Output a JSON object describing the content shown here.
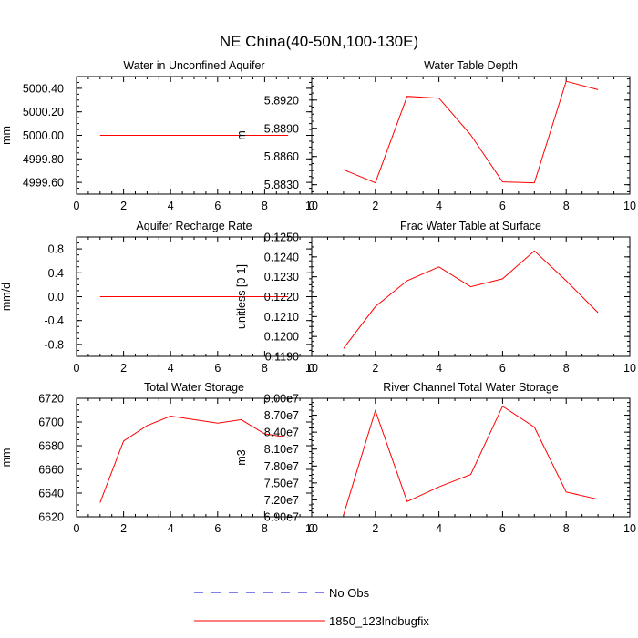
{
  "figure_title": "NE China(40-50N,100-130E)",
  "colors": {
    "model": "#ff0000",
    "obs": "#0000cc",
    "axis": "#000000"
  },
  "legend": {
    "items": [
      {
        "label": "No Obs",
        "style": "dashed",
        "color": "#0000cc"
      },
      {
        "label": "1850_123lndbugfix",
        "style": "solid",
        "color": "#ff0000"
      }
    ]
  },
  "chart_data": [
    {
      "type": "line",
      "title": "Water in Unconfined Aquifer",
      "ylabel": "mm",
      "xlim": [
        0,
        10
      ],
      "ylim": [
        4999.5,
        5000.5
      ],
      "xticks": [
        0,
        2,
        4,
        6,
        8,
        10
      ],
      "yticks": [
        4999.6,
        4999.8,
        5000.0,
        5000.2,
        5000.4
      ],
      "ytick_labels": [
        "4999.60",
        "4999.80",
        "5000.00",
        "5000.20",
        "5000.40"
      ],
      "x": [
        1,
        2,
        3,
        4,
        5,
        6,
        7,
        8,
        9
      ],
      "series": [
        {
          "name": "1850_123lndbugfix",
          "values": [
            5000,
            5000,
            5000,
            5000,
            5000,
            5000,
            5000,
            5000,
            5000
          ]
        }
      ]
    },
    {
      "type": "line",
      "title": "Water Table Depth",
      "ylabel": "m",
      "xlim": [
        0,
        10
      ],
      "ylim": [
        5.882,
        5.8945
      ],
      "xticks": [
        0,
        2,
        4,
        6,
        8,
        10
      ],
      "yticks": [
        5.883,
        5.886,
        5.889,
        5.892
      ],
      "ytick_labels": [
        "5.8830",
        "5.8860",
        "5.8890",
        "5.8920"
      ],
      "x": [
        1,
        2,
        3,
        4,
        5,
        6,
        7,
        8,
        9
      ],
      "series": [
        {
          "name": "1850_123lndbugfix",
          "values": [
            5.8846,
            5.8832,
            5.8924,
            5.8922,
            5.8883,
            5.8833,
            5.8832,
            5.894,
            5.8931
          ]
        }
      ]
    },
    {
      "type": "line",
      "title": "Aquifer Recharge Rate",
      "ylabel": "mm/d",
      "xlim": [
        0,
        10
      ],
      "ylim": [
        -1.0,
        1.0
      ],
      "xticks": [
        0,
        2,
        4,
        6,
        8,
        10
      ],
      "yticks": [
        -0.8,
        -0.4,
        0.0,
        0.4,
        0.8
      ],
      "ytick_labels": [
        "-0.8",
        "-0.4",
        "0.0",
        "0.4",
        "0.8"
      ],
      "x": [
        1,
        2,
        3,
        4,
        5,
        6,
        7,
        8,
        9
      ],
      "series": [
        {
          "name": "1850_123lndbugfix",
          "values": [
            0,
            0,
            0,
            0,
            0,
            0,
            0,
            0,
            0
          ]
        }
      ]
    },
    {
      "type": "line",
      "title": "Frac Water Table at Surface",
      "ylabel": "unitless [0-1]",
      "xlim": [
        0,
        10
      ],
      "ylim": [
        0.119,
        0.125
      ],
      "xticks": [
        0,
        2,
        4,
        6,
        8,
        10
      ],
      "yticks": [
        0.119,
        0.12,
        0.121,
        0.122,
        0.123,
        0.124,
        0.125
      ],
      "ytick_labels": [
        "0.1190",
        "0.1200",
        "0.1210",
        "0.1220",
        "0.1230",
        "0.1240",
        "0.1250"
      ],
      "x": [
        1,
        2,
        3,
        4,
        5,
        6,
        7,
        8,
        9
      ],
      "series": [
        {
          "name": "1850_123lndbugfix",
          "values": [
            0.1194,
            0.1215,
            0.1228,
            0.1235,
            0.1225,
            0.1229,
            0.1243,
            0.1228,
            0.1212
          ]
        }
      ]
    },
    {
      "type": "line",
      "title": "Total Water Storage",
      "ylabel": "mm",
      "xlim": [
        0,
        10
      ],
      "ylim": [
        6620,
        6720
      ],
      "xticks": [
        0,
        2,
        4,
        6,
        8,
        10
      ],
      "yticks": [
        6620,
        6640,
        6660,
        6680,
        6700,
        6720
      ],
      "ytick_labels": [
        "6620",
        "6640",
        "6660",
        "6680",
        "6700",
        "6720"
      ],
      "x": [
        1,
        2,
        3,
        4,
        5,
        6,
        7,
        8,
        9
      ],
      "series": [
        {
          "name": "1850_123lndbugfix",
          "values": [
            6632,
            6684,
            6697,
            6705,
            6702,
            6699,
            6702,
            6690,
            6687
          ]
        }
      ]
    },
    {
      "type": "line",
      "title": "River Channel Total Water Storage",
      "ylabel": "m3",
      "xlim": [
        0,
        10
      ],
      "ylim": [
        69000000,
        90000000
      ],
      "xticks": [
        0,
        2,
        4,
        6,
        8,
        10
      ],
      "yticks": [
        69000000,
        72000000,
        75000000,
        78000000,
        81000000,
        84000000,
        87000000,
        90000000
      ],
      "ytick_labels": [
        "6.90e7",
        "7.20e7",
        "7.50e7",
        "7.80e7",
        "8.10e7",
        "8.40e7",
        "8.70e7",
        "9.00e7"
      ],
      "x": [
        1,
        2,
        3,
        4,
        5,
        6,
        7,
        8,
        9
      ],
      "series": [
        {
          "name": "1850_123lndbugfix",
          "values": [
            69300000,
            87800000,
            71700000,
            74300000,
            76500000,
            88600000,
            84900000,
            73400000,
            72100000
          ]
        }
      ]
    }
  ]
}
